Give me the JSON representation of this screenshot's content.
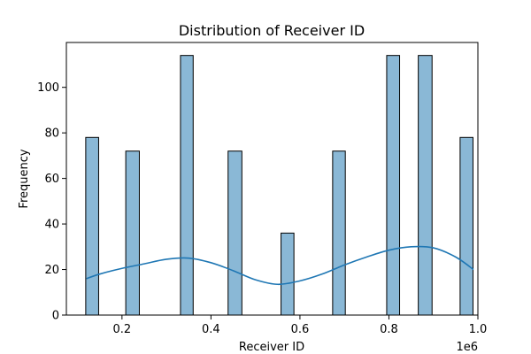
{
  "chart_data": {
    "type": "bar",
    "title": "Distribution of Receiver ID",
    "xlabel": "Receiver ID",
    "ylabel": "Frequency",
    "x_offset_label": "1e6",
    "xlim": [
      0.075,
      1.0
    ],
    "ylim": [
      0,
      119.7
    ],
    "x_ticks": [
      0.2,
      0.4,
      0.6,
      0.8,
      1.0
    ],
    "x_tick_labels": [
      "0.2",
      "0.4",
      "0.6",
      "0.8",
      "1.0"
    ],
    "y_ticks": [
      0,
      20,
      40,
      60,
      80,
      100
    ],
    "y_tick_labels": [
      "0",
      "20",
      "40",
      "60",
      "80",
      "100"
    ],
    "bar_color": "#8ab8d6",
    "bar_edge_color": "#000000",
    "kde_color": "#1f77b4",
    "bars": [
      {
        "x0": 0.1185,
        "x1": 0.1475,
        "value": 78
      },
      {
        "x0": 0.2085,
        "x1": 0.239,
        "value": 72
      },
      {
        "x0": 0.3315,
        "x1": 0.36,
        "value": 114
      },
      {
        "x0": 0.4385,
        "x1": 0.4695,
        "value": 72
      },
      {
        "x0": 0.5575,
        "x1": 0.5865,
        "value": 36
      },
      {
        "x0": 0.6735,
        "x1": 0.702,
        "value": 72
      },
      {
        "x0": 0.795,
        "x1": 0.824,
        "value": 114
      },
      {
        "x0": 0.866,
        "x1": 0.897,
        "value": 114
      },
      {
        "x0": 0.96,
        "x1": 0.989,
        "value": 78
      }
    ],
    "kde": {
      "x": [
        0.12,
        0.15,
        0.2,
        0.25,
        0.3,
        0.35,
        0.4,
        0.45,
        0.5,
        0.55,
        0.6,
        0.65,
        0.7,
        0.75,
        0.8,
        0.85,
        0.9,
        0.95,
        0.99
      ],
      "y": [
        16,
        18,
        20.5,
        22.5,
        24.5,
        25,
        23,
        19.5,
        15.5,
        13.5,
        15,
        18,
        22,
        25.5,
        28.5,
        30,
        29.5,
        25.5,
        20
      ]
    }
  }
}
